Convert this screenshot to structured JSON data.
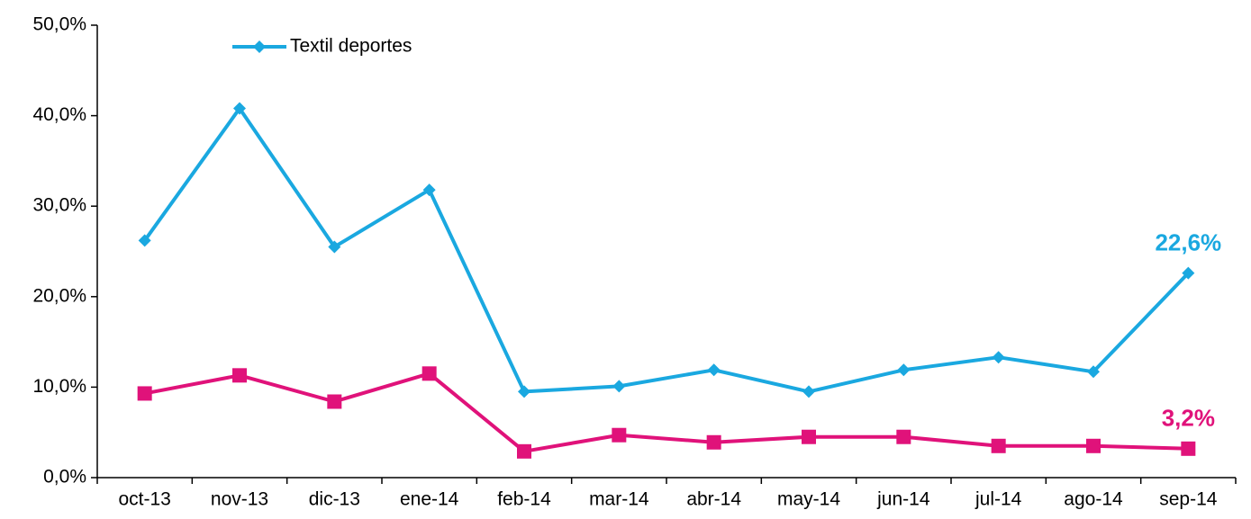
{
  "chart_data": {
    "type": "line",
    "categories": [
      "oct-13",
      "nov-13",
      "dic-13",
      "ene-14",
      "feb-14",
      "mar-14",
      "abr-14",
      "may-14",
      "jun-14",
      "jul-14",
      "ago-14",
      "sep-14"
    ],
    "series": [
      {
        "name": "Textil deportes",
        "color": "#1aa8e0",
        "marker": "diamond",
        "values": [
          26.2,
          40.8,
          25.5,
          31.8,
          9.5,
          10.1,
          11.9,
          9.5,
          11.9,
          13.3,
          11.7,
          22.6
        ],
        "value_labels": [
          null,
          null,
          null,
          null,
          null,
          null,
          null,
          null,
          null,
          null,
          null,
          "22,6%"
        ]
      },
      {
        "color": "#e0127a",
        "marker": "square",
        "values": [
          9.3,
          11.3,
          8.4,
          11.5,
          2.9,
          4.7,
          3.9,
          4.5,
          4.5,
          3.5,
          3.5,
          3.2
        ],
        "value_labels": [
          null,
          null,
          null,
          null,
          null,
          null,
          null,
          null,
          null,
          null,
          null,
          "3,2%"
        ]
      }
    ],
    "ylim": [
      0,
      50
    ],
    "yticks": [
      {
        "value": 0,
        "label": "0,0%"
      },
      {
        "value": 10,
        "label": "10,0%"
      },
      {
        "value": 20,
        "label": "20,0%"
      },
      {
        "value": 30,
        "label": "30,0%"
      },
      {
        "value": 40,
        "label": "40,0%"
      },
      {
        "value": 50,
        "label": "50,0%"
      }
    ],
    "grid": false,
    "legend": "upper left"
  }
}
